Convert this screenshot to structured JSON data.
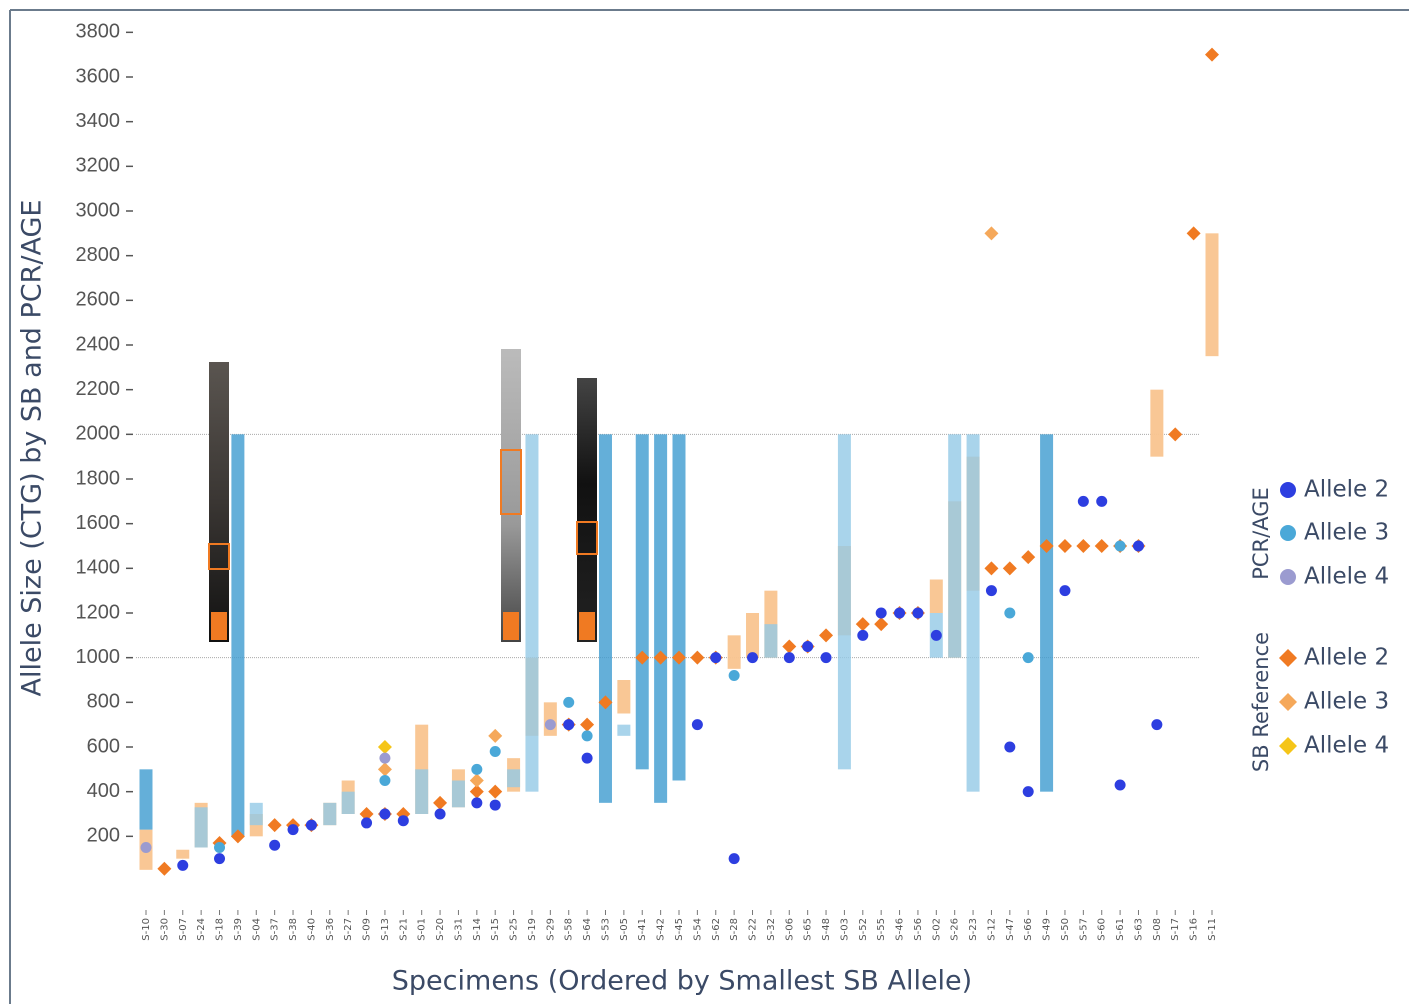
{
  "chart_data": {
    "type": "scatter",
    "y_label": "Allele Size (CTG) by SB and PCR/AGE",
    "x_label": "Specimens (Ordered by Smallest SB Allele)",
    "categories": [
      "S-10",
      "S-30",
      "S-07",
      "S-24",
      "S-18",
      "S-39",
      "S-04",
      "S-37",
      "S-38",
      "S-40",
      "S-36",
      "S-27",
      "S-09",
      "S-13",
      "S-21",
      "S-01",
      "S-20",
      "S-31",
      "S-14",
      "S-15",
      "S-25",
      "S-19",
      "S-29",
      "S-58",
      "S-64",
      "S-53",
      "S-05",
      "S-41",
      "S-42",
      "S-45",
      "S-54",
      "S-62",
      "S-28",
      "S-22",
      "S-32",
      "S-06",
      "S-65",
      "S-48",
      "S-03",
      "S-52",
      "S-55",
      "S-46",
      "S-56",
      "S-02",
      "S-26",
      "S-23",
      "S-12",
      "S-47",
      "S-66",
      "S-49",
      "S-50",
      "S-57",
      "S-60",
      "S-61",
      "S-63",
      "S-08",
      "S-17",
      "S-16",
      "S-11"
    ],
    "ylim": [
      0,
      3900
    ],
    "yticks": [
      200,
      400,
      600,
      800,
      1000,
      1200,
      1400,
      1600,
      1800,
      2000,
      2200,
      2400,
      2600,
      2800,
      3000,
      3200,
      3400,
      3600,
      3800
    ],
    "reference_lines": [
      1000,
      2000
    ],
    "legend_groups": [
      {
        "title": "PCR/AGE",
        "marker": "circle"
      },
      {
        "title": "SB Reference",
        "marker": "diamond"
      }
    ],
    "bands": [
      {
        "color": "#f9c48f",
        "lows": [
          50,
          null,
          100,
          150,
          null,
          null,
          200,
          null,
          null,
          null,
          250,
          300,
          null,
          null,
          null,
          300,
          null,
          330,
          null,
          null,
          400,
          650,
          650,
          null,
          null,
          null,
          750,
          null,
          null,
          null,
          null,
          null,
          950,
          1000,
          1000,
          null,
          null,
          null,
          1100,
          null,
          null,
          null,
          null,
          1200,
          1000,
          1300,
          null,
          null,
          null,
          null,
          null,
          null,
          null,
          null,
          null,
          1900,
          null,
          null,
          2350
        ],
        "highs": [
          230,
          null,
          140,
          350,
          null,
          null,
          300,
          null,
          null,
          null,
          350,
          450,
          null,
          null,
          null,
          700,
          null,
          500,
          null,
          null,
          550,
          1000,
          800,
          null,
          null,
          null,
          900,
          null,
          null,
          null,
          null,
          null,
          1100,
          1200,
          1300,
          null,
          null,
          null,
          1500,
          null,
          null,
          null,
          null,
          1350,
          1700,
          1900,
          null,
          null,
          null,
          null,
          null,
          null,
          null,
          null,
          null,
          2200,
          null,
          null,
          2900
        ]
      },
      {
        "color": "#93c9e6",
        "lows": [
          null,
          null,
          null,
          150,
          null,
          null,
          250,
          null,
          null,
          null,
          250,
          300,
          null,
          null,
          null,
          300,
          null,
          330,
          null,
          null,
          420,
          400,
          null,
          null,
          null,
          null,
          650,
          null,
          null,
          null,
          null,
          null,
          null,
          null,
          1000,
          null,
          null,
          null,
          500,
          null,
          null,
          null,
          null,
          1000,
          1000,
          400,
          null,
          null,
          null,
          null,
          null,
          null,
          null,
          null,
          null,
          null,
          null,
          null,
          null
        ],
        "highs": [
          null,
          null,
          null,
          330,
          null,
          null,
          350,
          null,
          null,
          null,
          350,
          400,
          null,
          null,
          null,
          500,
          null,
          450,
          null,
          null,
          500,
          2000,
          null,
          null,
          null,
          null,
          700,
          null,
          null,
          null,
          null,
          null,
          null,
          null,
          1150,
          null,
          null,
          null,
          2000,
          null,
          null,
          null,
          null,
          1200,
          2000,
          2000,
          null,
          null,
          null,
          null,
          null,
          null,
          null,
          null,
          null,
          null,
          null,
          null,
          null
        ]
      },
      {
        "color": "#3d9bd0",
        "lows": [
          230,
          null,
          null,
          null,
          null,
          200,
          null,
          null,
          null,
          null,
          null,
          null,
          null,
          null,
          null,
          null,
          null,
          null,
          null,
          null,
          null,
          null,
          null,
          null,
          null,
          350,
          null,
          500,
          350,
          450,
          null,
          null,
          null,
          null,
          null,
          null,
          null,
          null,
          null,
          null,
          null,
          null,
          null,
          null,
          null,
          null,
          null,
          null,
          null,
          400,
          null,
          null,
          null,
          null,
          null,
          null,
          null,
          null,
          null
        ],
        "highs": [
          500,
          null,
          null,
          null,
          null,
          2000,
          null,
          null,
          null,
          null,
          null,
          null,
          null,
          null,
          null,
          null,
          null,
          null,
          null,
          null,
          null,
          null,
          null,
          null,
          null,
          2000,
          null,
          2000,
          2000,
          2000,
          null,
          null,
          null,
          null,
          null,
          null,
          null,
          null,
          null,
          null,
          null,
          null,
          null,
          null,
          null,
          null,
          null,
          null,
          null,
          2000,
          null,
          null,
          null,
          null,
          null,
          null,
          null,
          null,
          null
        ]
      }
    ],
    "series": [
      {
        "name": "Allele 2",
        "marker": "circle",
        "color": "#2d3ee0",
        "values": [
          null,
          null,
          70,
          null,
          100,
          null,
          null,
          160,
          230,
          250,
          null,
          null,
          260,
          300,
          270,
          null,
          300,
          null,
          350,
          340,
          null,
          null,
          null,
          700,
          550,
          null,
          null,
          null,
          null,
          null,
          700,
          1000,
          100,
          1000,
          null,
          1000,
          1050,
          1000,
          null,
          1100,
          1200,
          1200,
          1200,
          1100,
          null,
          null,
          1300,
          600,
          400,
          null,
          1300,
          1700,
          1700,
          430,
          1500,
          700,
          null,
          null,
          null
        ]
      },
      {
        "name": "Allele 3",
        "marker": "circle",
        "color": "#4aa8d8",
        "values": [
          null,
          null,
          null,
          null,
          150,
          null,
          null,
          null,
          null,
          null,
          null,
          null,
          null,
          450,
          null,
          null,
          null,
          null,
          500,
          580,
          null,
          null,
          null,
          800,
          650,
          null,
          null,
          null,
          null,
          null,
          null,
          null,
          920,
          null,
          null,
          null,
          null,
          null,
          null,
          null,
          null,
          null,
          null,
          null,
          null,
          null,
          null,
          1200,
          1000,
          null,
          null,
          null,
          null,
          1500,
          null,
          null,
          null,
          null,
          null
        ]
      },
      {
        "name": "Allele 4",
        "marker": "circle",
        "color": "#9b9bd0",
        "values": [
          150,
          null,
          null,
          null,
          null,
          null,
          null,
          null,
          null,
          null,
          null,
          null,
          null,
          550,
          null,
          null,
          null,
          null,
          null,
          null,
          null,
          null,
          700,
          null,
          null,
          null,
          null,
          null,
          null,
          null,
          null,
          null,
          null,
          null,
          null,
          null,
          null,
          null,
          null,
          null,
          null,
          null,
          null,
          null,
          null,
          null,
          null,
          null,
          null,
          null,
          null,
          null,
          null,
          null,
          null,
          null,
          null,
          null,
          null
        ]
      },
      {
        "name": "Allele 2",
        "marker": "diamond",
        "color": "#f07a22",
        "values": [
          null,
          55,
          null,
          null,
          170,
          200,
          null,
          250,
          250,
          250,
          null,
          null,
          300,
          300,
          300,
          null,
          350,
          null,
          400,
          400,
          null,
          null,
          null,
          700,
          700,
          800,
          null,
          1000,
          1000,
          1000,
          1000,
          1000,
          null,
          null,
          null,
          1050,
          1050,
          1100,
          null,
          1150,
          1150,
          1200,
          1200,
          null,
          null,
          null,
          1400,
          1400,
          1450,
          1500,
          1500,
          1500,
          1500,
          1500,
          1500,
          null,
          2000,
          2900,
          3700
        ]
      },
      {
        "name": "Allele 3",
        "marker": "diamond",
        "color": "#f5a85a",
        "values": [
          null,
          null,
          null,
          null,
          null,
          null,
          null,
          null,
          null,
          null,
          null,
          null,
          null,
          500,
          null,
          null,
          null,
          null,
          450,
          650,
          null,
          null,
          null,
          null,
          null,
          null,
          null,
          null,
          null,
          null,
          null,
          null,
          null,
          null,
          null,
          null,
          null,
          null,
          null,
          null,
          null,
          null,
          null,
          null,
          null,
          null,
          2900,
          null,
          null,
          null,
          null,
          null,
          null,
          null,
          null,
          null,
          null,
          null,
          null
        ]
      },
      {
        "name": "Allele 4",
        "marker": "diamond",
        "color": "#f5c518",
        "values": [
          null,
          null,
          null,
          null,
          null,
          null,
          null,
          null,
          null,
          null,
          null,
          null,
          null,
          600,
          null,
          null,
          null,
          null,
          null,
          null,
          null,
          null,
          null,
          null,
          null,
          null,
          null,
          null,
          null,
          null,
          null,
          null,
          null,
          null,
          null,
          null,
          null,
          null,
          null,
          null,
          null,
          null,
          null,
          null,
          null,
          null,
          null,
          null,
          null,
          null,
          null,
          null,
          null,
          null,
          null,
          null,
          null,
          null,
          null
        ]
      }
    ]
  }
}
